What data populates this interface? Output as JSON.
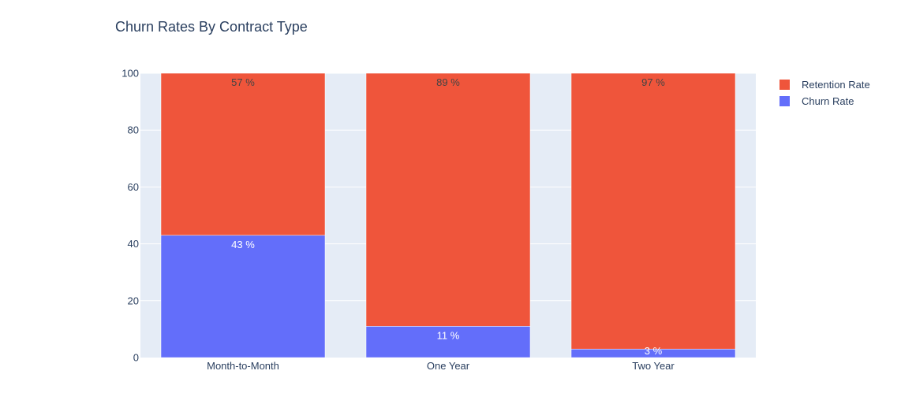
{
  "chart_data": {
    "type": "bar",
    "barmode": "stack",
    "title": "Churn Rates By Contract Type",
    "xlabel": "",
    "ylabel": "",
    "categories": [
      "Month-to-Month",
      "One Year",
      "Two Year"
    ],
    "ylim": [
      0,
      100
    ],
    "yticks": [
      0,
      20,
      40,
      60,
      80,
      100
    ],
    "grid": true,
    "legend_position": "top-right",
    "series": [
      {
        "name": "Churn Rate",
        "color": "#636efa",
        "values": [
          43,
          11,
          3
        ],
        "labels": [
          "43 %",
          "11 %",
          "3 %"
        ],
        "label_color": "#ffffff"
      },
      {
        "name": "Retention Rate",
        "color": "#ef553b",
        "values": [
          57,
          89,
          97
        ],
        "labels": [
          "57 %",
          "89 %",
          "97 %"
        ],
        "label_color": "#444444"
      }
    ],
    "legend_order": [
      "Retention Rate",
      "Churn Rate"
    ],
    "plot_background": "#e5ecf6",
    "gridline_color": "#ffffff"
  }
}
